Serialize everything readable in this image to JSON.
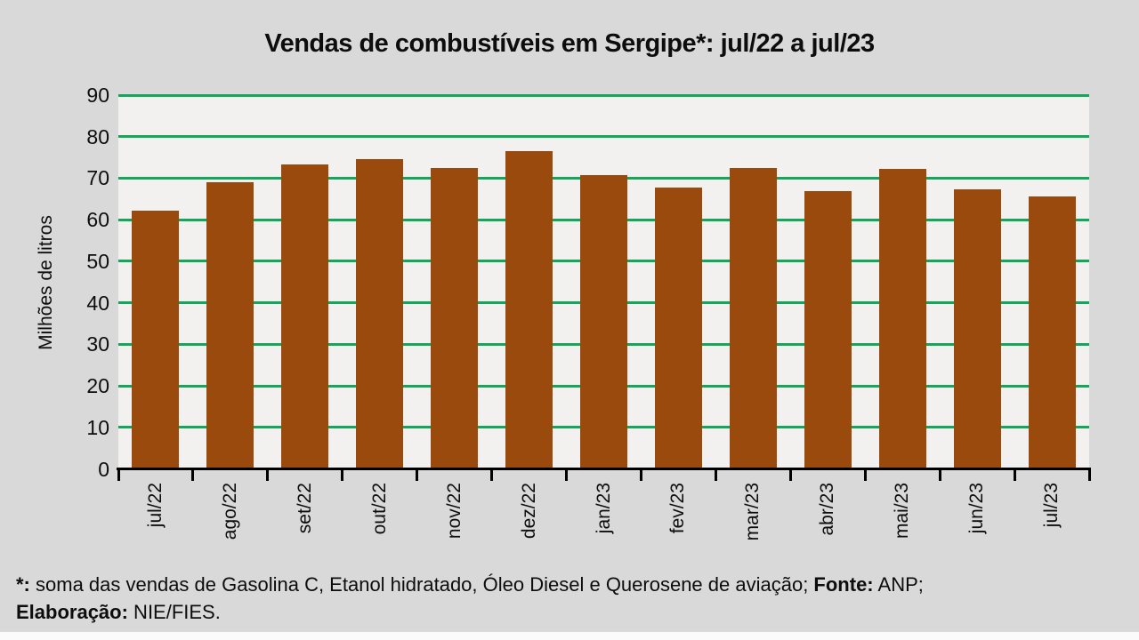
{
  "title": "Vendas de combustíveis em Sergipe*: jul/22 a jul/23",
  "chart_data": {
    "type": "bar",
    "title": "Vendas de combustíveis em Sergipe*: jul/22 a jul/23",
    "categories": [
      "jul/22",
      "ago/22",
      "set/22",
      "out/22",
      "nov/22",
      "dez/22",
      "jan/23",
      "fev/23",
      "mar/23",
      "abr/23",
      "mai/23",
      "jun/23",
      "jul/23"
    ],
    "values": [
      62.1,
      69.0,
      73.4,
      74.5,
      72.4,
      76.6,
      70.8,
      67.7,
      72.5,
      66.8,
      72.2,
      67.4,
      65.7
    ],
    "xlabel": "",
    "ylabel": "Milhões de litros",
    "ylim": [
      0,
      90
    ],
    "yticks": [
      0,
      10,
      20,
      30,
      40,
      50,
      60,
      70,
      80,
      90
    ],
    "grid": true,
    "legend": false,
    "colors": {
      "bar": "#9a4a0c",
      "gridline": "#12a759",
      "plot_background": "#f2f1ef",
      "page_background": "#d9d9d9",
      "axis": "#000000",
      "text": "#0d0d0d"
    }
  },
  "footer": {
    "segments": [
      {
        "text": "*:",
        "bold": true
      },
      {
        "text": " soma das vendas de Gasolina C, Etanol hidratado, Óleo Diesel e Querosene de aviação; ",
        "bold": false
      },
      {
        "text": "Fonte:",
        "bold": true
      },
      {
        "text": " ANP;",
        "bold": false
      },
      {
        "br": true
      },
      {
        "text": "Elaboração:",
        "bold": true
      },
      {
        "text": " NIE/FIES.",
        "bold": false
      }
    ]
  }
}
